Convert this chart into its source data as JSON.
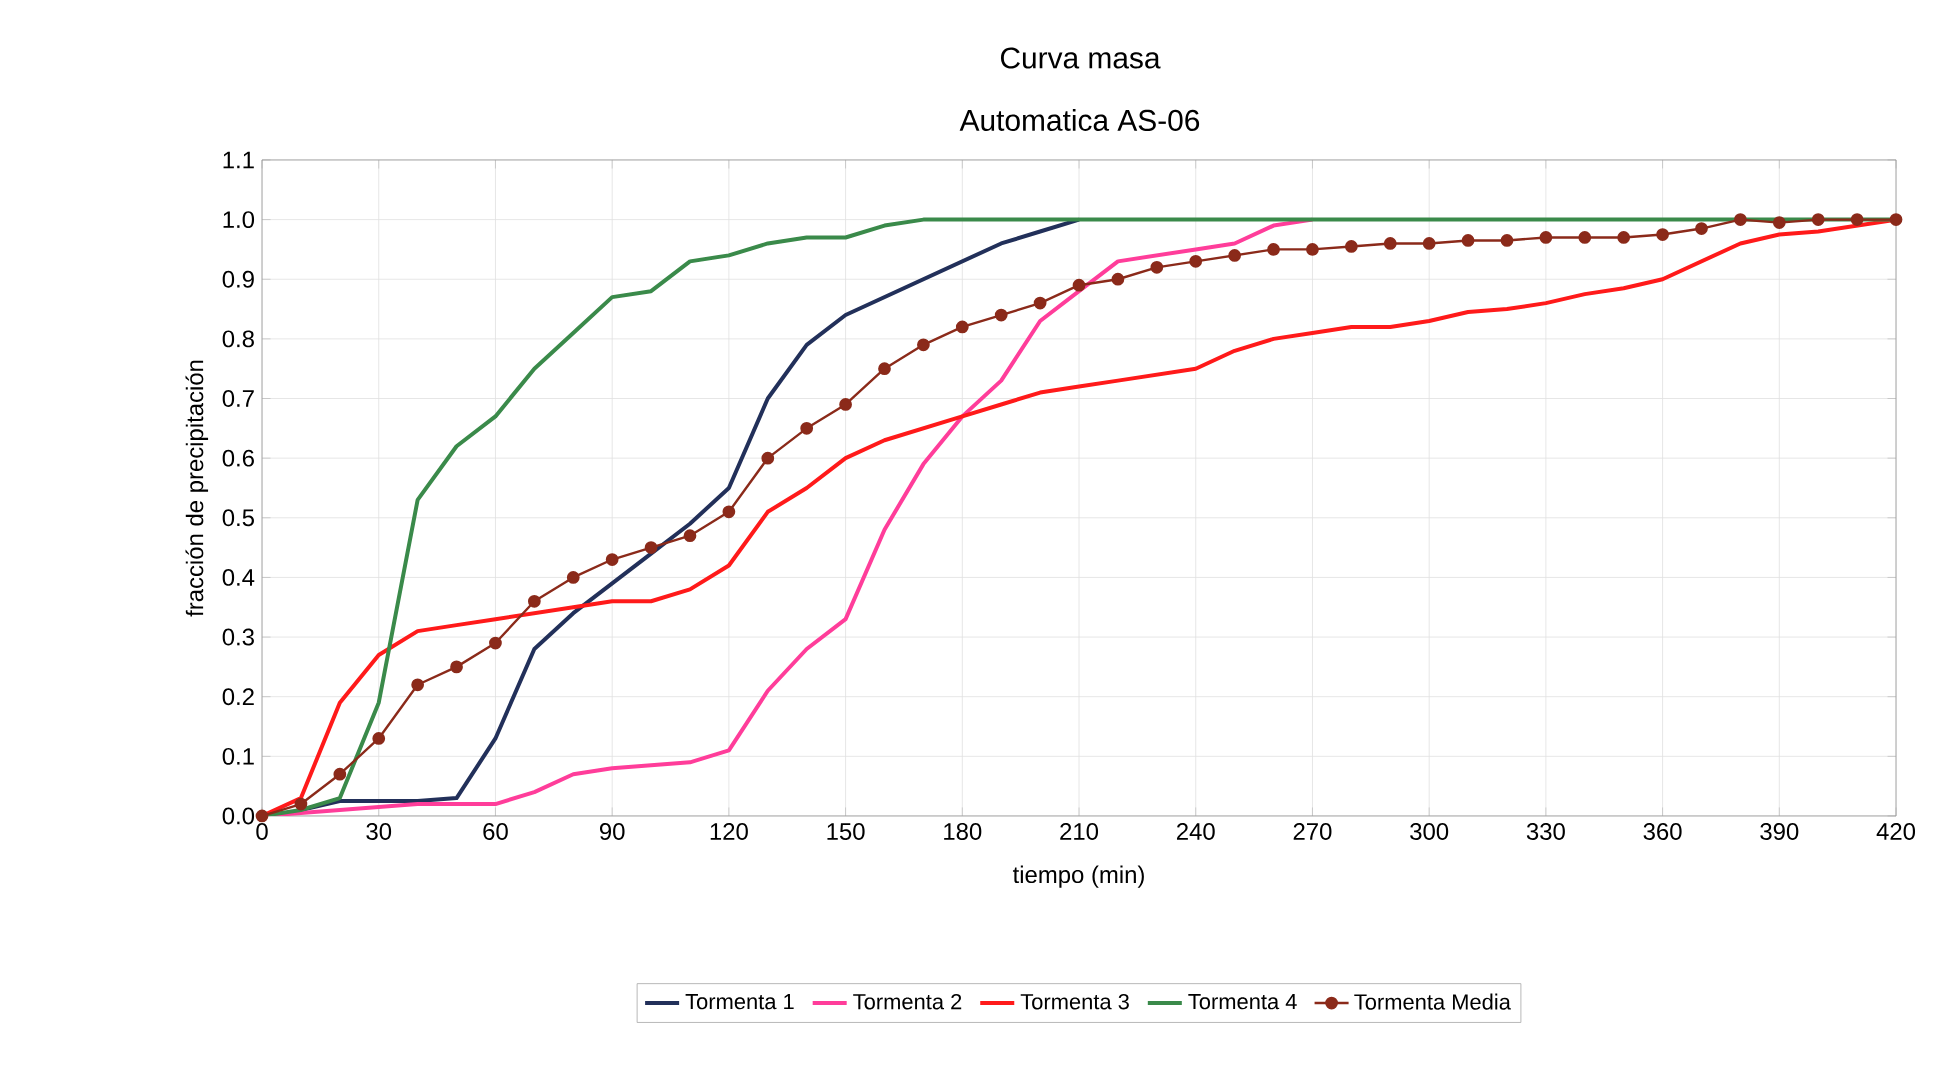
{
  "chart_data": {
    "type": "line",
    "title": "Curva masa",
    "subtitle": "Automatica AS-06",
    "xlabel": "tiempo (min)",
    "ylabel": "fracción de precipitación",
    "x": [
      0,
      10,
      20,
      30,
      40,
      50,
      60,
      70,
      80,
      90,
      100,
      110,
      120,
      130,
      140,
      150,
      160,
      170,
      180,
      190,
      200,
      210,
      220,
      230,
      240,
      250,
      260,
      270,
      280,
      290,
      300,
      310,
      320,
      330,
      340,
      350,
      360,
      370,
      380,
      390,
      400,
      410,
      420
    ],
    "series": [
      {
        "name": "Tormenta 1",
        "color": "#22305a",
        "marker": "none",
        "values": [
          null,
          0.01,
          0.025,
          0.025,
          0.025,
          0.03,
          0.13,
          0.28,
          0.34,
          0.39,
          0.44,
          0.49,
          0.55,
          0.7,
          0.79,
          0.84,
          0.87,
          0.9,
          0.93,
          0.96,
          0.98,
          1.0,
          null,
          null,
          null,
          null,
          null,
          null,
          null,
          null,
          null,
          null,
          null,
          null,
          null,
          null,
          null,
          null,
          null,
          null,
          null,
          null,
          null
        ]
      },
      {
        "name": "Tormenta 2",
        "color": "#ff3d9a",
        "marker": "none",
        "values": [
          0,
          0.005,
          0.01,
          0.015,
          0.02,
          0.02,
          0.02,
          0.04,
          0.07,
          0.08,
          0.085,
          0.09,
          0.11,
          0.21,
          0.28,
          0.33,
          0.48,
          0.59,
          0.67,
          0.73,
          0.83,
          0.88,
          0.93,
          0.94,
          0.95,
          0.96,
          0.99,
          1.0,
          null,
          null,
          null,
          null,
          null,
          null,
          null,
          null,
          null,
          null,
          null,
          null,
          null,
          null,
          null
        ]
      },
      {
        "name": "Tormenta 3",
        "color": "#ff1a1a",
        "marker": "none",
        "values": [
          0,
          0.03,
          0.19,
          0.27,
          0.31,
          0.32,
          0.33,
          0.34,
          0.35,
          0.36,
          0.36,
          0.38,
          0.42,
          0.51,
          0.55,
          0.6,
          0.63,
          0.65,
          0.67,
          0.69,
          0.71,
          0.72,
          0.73,
          0.74,
          0.75,
          0.78,
          0.8,
          0.81,
          0.82,
          0.82,
          0.83,
          0.845,
          0.85,
          0.86,
          0.875,
          0.885,
          0.9,
          0.93,
          0.96,
          0.975,
          0.98,
          0.99,
          1.0
        ]
      },
      {
        "name": "Tormenta 4",
        "color": "#3a8a4a",
        "marker": "none",
        "values": [
          0,
          0.01,
          0.03,
          0.19,
          0.53,
          0.62,
          0.67,
          0.75,
          0.81,
          0.87,
          0.88,
          0.93,
          0.94,
          0.96,
          0.97,
          0.97,
          0.99,
          1.0,
          1.0,
          1.0,
          1.0,
          1.0,
          1.0,
          1.0,
          1.0,
          1.0,
          1.0,
          1.0,
          1.0,
          1.0,
          1.0,
          1.0,
          1.0,
          1.0,
          1.0,
          1.0,
          1.0,
          1.0,
          1.0,
          1.0,
          1.0,
          1.0,
          1.0
        ]
      },
      {
        "name": "Tormenta Media",
        "color": "#8b2a1a",
        "marker": "circle",
        "values": [
          0,
          0.02,
          0.07,
          0.13,
          0.22,
          0.25,
          0.29,
          0.36,
          0.4,
          0.43,
          0.45,
          0.47,
          0.51,
          0.6,
          0.65,
          0.69,
          0.75,
          0.79,
          0.82,
          0.84,
          0.86,
          0.89,
          0.9,
          0.92,
          0.93,
          0.94,
          0.95,
          0.95,
          0.955,
          0.96,
          0.96,
          0.965,
          0.965,
          0.97,
          0.97,
          0.97,
          0.975,
          0.985,
          1.0,
          0.995,
          1.0,
          1.0,
          1.0
        ]
      }
    ],
    "xlim": [
      0,
      420
    ],
    "xticks": [
      0,
      30,
      60,
      90,
      120,
      150,
      180,
      210,
      240,
      270,
      300,
      330,
      360,
      390,
      420
    ],
    "ylim": [
      0,
      1.1
    ],
    "yticks": [
      {
        "value": 0,
        "label": "0.0"
      },
      {
        "value": 0.1,
        "label": "0.1"
      },
      {
        "value": 0.2,
        "label": "0.2"
      },
      {
        "value": 0.3,
        "label": "0.3"
      },
      {
        "value": 0.4,
        "label": "0.4"
      },
      {
        "value": 0.5,
        "label": "0.5"
      },
      {
        "value": 0.6,
        "label": "0.6"
      },
      {
        "value": 0.7,
        "label": "0.7"
      },
      {
        "value": 0.8,
        "label": "0.8"
      },
      {
        "value": 0.9,
        "label": "0.9"
      },
      {
        "value": 1,
        "label": "1.0"
      },
      {
        "value": 1.1,
        "label": "1.1"
      }
    ],
    "grid": true,
    "legend": "bottom",
    "line_style": "solid"
  }
}
